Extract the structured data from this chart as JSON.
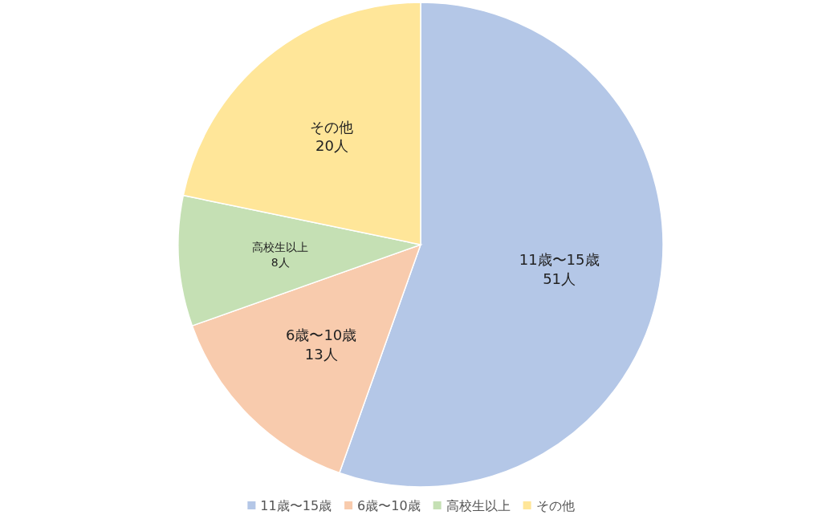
{
  "chart_data": {
    "type": "pie",
    "categories": [
      "11歳〜15歳",
      "6歳〜10歳",
      "高校生以上",
      "その他"
    ],
    "values": [
      51,
      13,
      8,
      20
    ],
    "value_labels": [
      "51人",
      "13人",
      "8人",
      "20人"
    ],
    "colors": [
      "#b4c7e7",
      "#f8cbad",
      "#c5e0b4",
      "#ffe699"
    ],
    "legend": "bottom"
  }
}
